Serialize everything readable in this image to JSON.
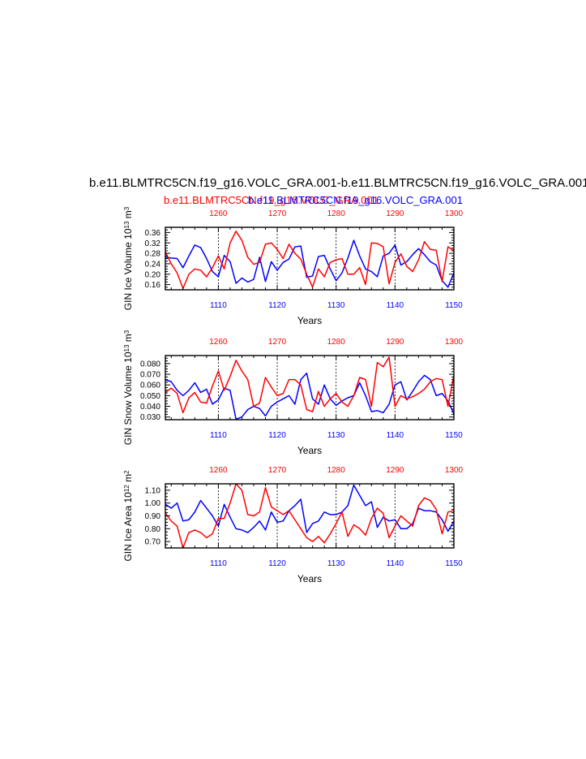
{
  "title": "b.e11.BLMTRC5CN.f19_g16.VOLC_GRA.001-b.e11.BLMTRC5CN.f19_g16.VOLC_GRA.001",
  "subtitle_red": "b.e11.BLMTRC5CN.f19_g16.VOLC_GRA.001",
  "subtitle_blue": "b.e11.BLMTRC5CN.f19_g16.VOLC_GRA.001",
  "colors": {
    "red": "#ff0000",
    "blue": "#0000ff",
    "axis": "#000000"
  },
  "chart_data": [
    {
      "type": "line",
      "ylabel": "GIN Ice Volume 10",
      "ylabel_exp": "13",
      "ylabel_unit": " m",
      "ylabel_unit_exp": "3",
      "xlabel": "Years",
      "ylim": [
        0.14,
        0.38
      ],
      "yticks": [
        0.16,
        0.2,
        0.24,
        0.28,
        0.32,
        0.36
      ],
      "yticklabels": [
        "0.16",
        "0.20",
        "0.24",
        "0.28",
        "0.32",
        "0.36"
      ],
      "bottom_xlim": [
        1101,
        1150
      ],
      "bottom_xticks": [
        1110,
        1120,
        1130,
        1140,
        1150
      ],
      "top_xlim": [
        1251,
        1300
      ],
      "top_xticks": [
        1260,
        1270,
        1280,
        1290,
        1300
      ],
      "series": [
        {
          "color": "blue",
          "axis": "bottom",
          "x": [
            1101,
            1102,
            1103,
            1104,
            1105,
            1106,
            1107,
            1108,
            1109,
            1110,
            1111,
            1112,
            1113,
            1114,
            1115,
            1116,
            1117,
            1118,
            1119,
            1120,
            1121,
            1122,
            1123,
            1124,
            1125,
            1126,
            1127,
            1128,
            1129,
            1130,
            1131,
            1132,
            1133,
            1134,
            1135,
            1136,
            1137,
            1138,
            1139,
            1140,
            1141,
            1142,
            1143,
            1144,
            1145,
            1146,
            1147,
            1148,
            1149,
            1150
          ],
          "y": [
            0.265,
            0.262,
            0.26,
            0.225,
            0.27,
            0.312,
            0.302,
            0.26,
            0.21,
            0.19,
            0.272,
            0.248,
            0.165,
            0.185,
            0.17,
            0.18,
            0.265,
            0.172,
            0.248,
            0.215,
            0.245,
            0.258,
            0.305,
            0.308,
            0.188,
            0.193,
            0.268,
            0.272,
            0.22,
            0.175,
            0.205,
            0.262,
            0.33,
            0.27,
            0.22,
            0.21,
            0.19,
            0.27,
            0.28,
            0.312,
            0.235,
            0.248,
            0.275,
            0.298,
            0.275,
            0.248,
            0.235,
            0.175,
            0.15,
            0.205
          ]
        },
        {
          "color": "red",
          "axis": "top",
          "x": [
            1251,
            1252,
            1253,
            1254,
            1255,
            1256,
            1257,
            1258,
            1259,
            1260,
            1261,
            1262,
            1263,
            1264,
            1265,
            1266,
            1267,
            1268,
            1269,
            1270,
            1271,
            1272,
            1273,
            1274,
            1275,
            1276,
            1277,
            1278,
            1279,
            1280,
            1281,
            1282,
            1283,
            1284,
            1285,
            1286,
            1287,
            1288,
            1289,
            1290,
            1291,
            1292,
            1293,
            1294,
            1295,
            1296,
            1297,
            1298,
            1299,
            1300
          ],
          "y": [
            0.285,
            0.24,
            0.205,
            0.145,
            0.2,
            0.22,
            0.215,
            0.19,
            0.225,
            0.27,
            0.22,
            0.32,
            0.365,
            0.33,
            0.265,
            0.238,
            0.245,
            0.315,
            0.32,
            0.295,
            0.26,
            0.315,
            0.28,
            0.258,
            0.2,
            0.15,
            0.22,
            0.19,
            0.245,
            0.255,
            0.26,
            0.2,
            0.2,
            0.225,
            0.16,
            0.32,
            0.318,
            0.305,
            0.163,
            0.245,
            0.278,
            0.23,
            0.21,
            0.255,
            0.325,
            0.295,
            0.292,
            0.172,
            0.305,
            0.29
          ]
        }
      ]
    },
    {
      "type": "line",
      "ylabel": "GIN Snow Volume 10",
      "ylabel_exp": "13",
      "ylabel_unit": " m",
      "ylabel_unit_exp": "3",
      "xlabel": "Years",
      "ylim": [
        0.0275,
        0.0875
      ],
      "yticks": [
        0.03,
        0.04,
        0.05,
        0.06,
        0.07,
        0.08
      ],
      "yticklabels": [
        "0.030",
        "0.040",
        "0.050",
        "0.060",
        "0.070",
        "0.080"
      ],
      "bottom_xlim": [
        1101,
        1150
      ],
      "bottom_xticks": [
        1110,
        1120,
        1130,
        1140,
        1150
      ],
      "top_xlim": [
        1251,
        1300
      ],
      "top_xticks": [
        1260,
        1270,
        1280,
        1290,
        1300
      ],
      "series": [
        {
          "color": "blue",
          "axis": "bottom",
          "x": [
            1101,
            1102,
            1103,
            1104,
            1105,
            1106,
            1107,
            1108,
            1109,
            1110,
            1111,
            1112,
            1113,
            1114,
            1115,
            1116,
            1117,
            1118,
            1119,
            1120,
            1121,
            1122,
            1123,
            1124,
            1125,
            1126,
            1127,
            1128,
            1129,
            1130,
            1131,
            1132,
            1133,
            1134,
            1135,
            1136,
            1137,
            1138,
            1139,
            1140,
            1141,
            1142,
            1143,
            1144,
            1145,
            1146,
            1147,
            1148,
            1149,
            1150
          ],
          "y": [
            0.065,
            0.063,
            0.055,
            0.05,
            0.055,
            0.062,
            0.053,
            0.056,
            0.042,
            0.046,
            0.057,
            0.055,
            0.028,
            0.03,
            0.037,
            0.04,
            0.038,
            0.031,
            0.04,
            0.044,
            0.047,
            0.05,
            0.042,
            0.065,
            0.071,
            0.047,
            0.042,
            0.06,
            0.047,
            0.041,
            0.045,
            0.048,
            0.05,
            0.062,
            0.05,
            0.035,
            0.036,
            0.034,
            0.042,
            0.06,
            0.063,
            0.046,
            0.054,
            0.063,
            0.069,
            0.065,
            0.05,
            0.052,
            0.045,
            0.033
          ]
        },
        {
          "color": "red",
          "axis": "top",
          "x": [
            1251,
            1252,
            1253,
            1254,
            1255,
            1256,
            1257,
            1258,
            1259,
            1260,
            1261,
            1262,
            1263,
            1264,
            1265,
            1266,
            1267,
            1268,
            1269,
            1270,
            1271,
            1272,
            1273,
            1274,
            1275,
            1276,
            1277,
            1278,
            1279,
            1280,
            1281,
            1282,
            1283,
            1284,
            1285,
            1286,
            1287,
            1288,
            1289,
            1290,
            1291,
            1292,
            1293,
            1294,
            1295,
            1296,
            1297,
            1298,
            1299,
            1300
          ],
          "y": [
            0.053,
            0.057,
            0.052,
            0.034,
            0.048,
            0.053,
            0.044,
            0.043,
            0.059,
            0.073,
            0.055,
            0.068,
            0.083,
            0.073,
            0.065,
            0.04,
            0.043,
            0.067,
            0.058,
            0.05,
            0.052,
            0.065,
            0.065,
            0.06,
            0.037,
            0.035,
            0.054,
            0.04,
            0.047,
            0.052,
            0.044,
            0.04,
            0.05,
            0.067,
            0.065,
            0.04,
            0.081,
            0.077,
            0.086,
            0.04,
            0.05,
            0.047,
            0.049,
            0.052,
            0.056,
            0.063,
            0.066,
            0.065,
            0.04,
            0.069
          ]
        }
      ]
    },
    {
      "type": "line",
      "ylabel": "GIN Ice Area 10",
      "ylabel_exp": "12",
      "ylabel_unit": " m",
      "ylabel_unit_exp": "2",
      "xlabel": "Years",
      "ylim": [
        0.65,
        1.15
      ],
      "yticks": [
        0.7,
        0.8,
        0.9,
        1.0,
        1.1
      ],
      "yticklabels": [
        "0.70",
        "0.80",
        "0.90",
        "1.00",
        "1.10"
      ],
      "bottom_xlim": [
        1101,
        1150
      ],
      "bottom_xticks": [
        1110,
        1120,
        1130,
        1140,
        1150
      ],
      "top_xlim": [
        1251,
        1300
      ],
      "top_xticks": [
        1260,
        1270,
        1280,
        1290,
        1300
      ],
      "series": [
        {
          "color": "blue",
          "axis": "bottom",
          "x": [
            1101,
            1102,
            1103,
            1104,
            1105,
            1106,
            1107,
            1108,
            1109,
            1110,
            1111,
            1112,
            1113,
            1114,
            1115,
            1116,
            1117,
            1118,
            1119,
            1120,
            1121,
            1122,
            1123,
            1124,
            1125,
            1126,
            1127,
            1128,
            1129,
            1130,
            1131,
            1132,
            1133,
            1134,
            1135,
            1136,
            1137,
            1138,
            1139,
            1140,
            1141,
            1142,
            1143,
            1144,
            1145,
            1146,
            1147,
            1148,
            1149,
            1150
          ],
          "y": [
            0.99,
            0.96,
            1.0,
            0.86,
            0.87,
            0.93,
            1.02,
            0.96,
            0.9,
            0.82,
            0.99,
            0.89,
            0.8,
            0.79,
            0.77,
            0.81,
            0.86,
            0.79,
            0.93,
            0.85,
            0.86,
            0.94,
            0.98,
            1.03,
            0.77,
            0.84,
            0.86,
            0.93,
            0.91,
            0.91,
            0.93,
            0.98,
            1.14,
            1.06,
            0.98,
            1.01,
            0.81,
            0.89,
            0.86,
            0.87,
            0.8,
            0.8,
            0.84,
            0.96,
            0.94,
            0.94,
            0.93,
            0.87,
            0.78,
            0.86
          ]
        },
        {
          "color": "red",
          "axis": "top",
          "x": [
            1251,
            1252,
            1253,
            1254,
            1255,
            1256,
            1257,
            1258,
            1259,
            1260,
            1261,
            1262,
            1263,
            1264,
            1265,
            1266,
            1267,
            1268,
            1269,
            1270,
            1271,
            1272,
            1273,
            1274,
            1275,
            1276,
            1277,
            1278,
            1279,
            1280,
            1281,
            1282,
            1283,
            1284,
            1285,
            1286,
            1287,
            1288,
            1289,
            1290,
            1291,
            1292,
            1293,
            1294,
            1295,
            1296,
            1297,
            1298,
            1299,
            1300
          ],
          "y": [
            0.92,
            0.86,
            0.82,
            0.65,
            0.77,
            0.79,
            0.77,
            0.73,
            0.76,
            0.88,
            0.88,
            1.0,
            1.15,
            1.1,
            0.91,
            0.9,
            0.93,
            1.12,
            0.97,
            0.94,
            0.91,
            0.94,
            0.87,
            0.8,
            0.73,
            0.7,
            0.74,
            0.69,
            0.76,
            0.84,
            0.93,
            0.74,
            0.83,
            0.8,
            0.75,
            0.88,
            0.96,
            0.92,
            0.73,
            0.82,
            0.9,
            0.86,
            0.82,
            0.98,
            1.04,
            1.02,
            0.95,
            0.76,
            0.93,
            0.94
          ]
        }
      ]
    }
  ]
}
